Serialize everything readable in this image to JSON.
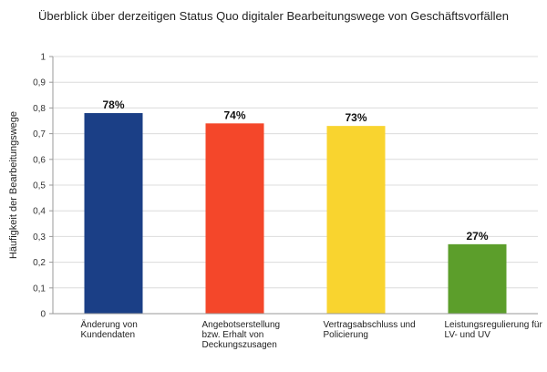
{
  "chart_data": {
    "type": "bar",
    "title": "Überblick über derzeitigen Status Quo digitaler Bearbeitungswege von Geschäftsvorfällen",
    "xlabel": "",
    "ylabel": "Häufigkeit der Bearbeitungswege",
    "ylim": [
      0,
      1
    ],
    "yticks": [
      "0",
      "0,1",
      "0,2",
      "0,3",
      "0,4",
      "0,5",
      "0,6",
      "0,7",
      "0,8",
      "0,9",
      "1"
    ],
    "grid": true,
    "legend": "none",
    "categories": [
      [
        "Änderung von",
        "Kundendaten"
      ],
      [
        "Angebotserstellung",
        "bzw. Erhalt von",
        "Deckungszusagen"
      ],
      [
        "Vertragsabschluss und",
        "Policierung"
      ],
      [
        "Leistungsregulierung für",
        "LV- und UV"
      ]
    ],
    "values": [
      0.78,
      0.74,
      0.73,
      0.27
    ],
    "data_labels": [
      "78%",
      "74%",
      "73%",
      "27%"
    ],
    "colors": [
      "#1b3f86",
      "#f4472a",
      "#f9d42f",
      "#5c9e2b"
    ]
  }
}
